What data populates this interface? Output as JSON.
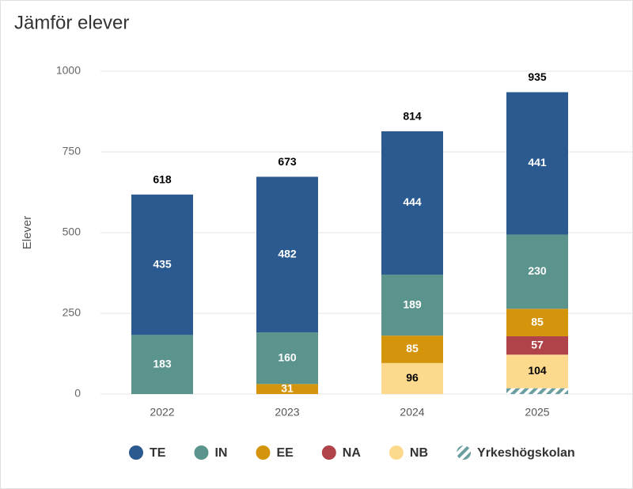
{
  "chart_data": {
    "type": "stacked_bar",
    "title": "Jämför elever",
    "y_label": "Elever",
    "categories": [
      "2022",
      "2023",
      "2024",
      "2025"
    ],
    "series": [
      {
        "name": "Yrkeshögskolan",
        "color": "#6a9ea0",
        "pattern": "hatch",
        "data_labels": false,
        "values": [
          null,
          null,
          null,
          18
        ]
      },
      {
        "name": "NB",
        "color": "#fdd98e",
        "label_color": "#000000",
        "values": [
          null,
          null,
          96,
          104
        ]
      },
      {
        "name": "NA",
        "color": "#b0434a",
        "label_color": "#ffffff",
        "values": [
          null,
          null,
          null,
          57
        ]
      },
      {
        "name": "EE",
        "color": "#d4950c",
        "label_color": "#ffffff",
        "values": [
          0,
          31,
          85,
          85
        ]
      },
      {
        "name": "IN",
        "color": "#5a948c",
        "label_color": "#ffffff",
        "values": [
          183,
          160,
          189,
          230
        ]
      },
      {
        "name": "TE",
        "color": "#2a5a8f",
        "label_color": "#ffffff",
        "values": [
          435,
          482,
          444,
          441
        ]
      }
    ],
    "totals": [
      618,
      673,
      814,
      935
    ],
    "legend_order": [
      5,
      4,
      3,
      2,
      1,
      0
    ],
    "ylim": [
      0,
      1000
    ],
    "yticks": [
      0,
      250,
      500,
      750,
      1000
    ],
    "grid": true
  }
}
